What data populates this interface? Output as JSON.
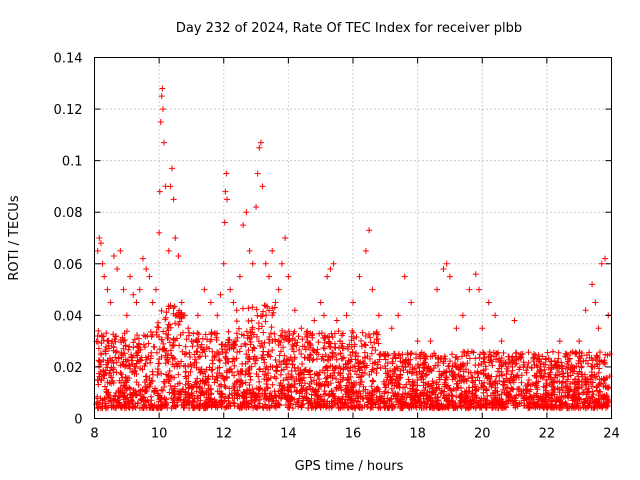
{
  "chart_data": {
    "type": "scatter",
    "title": "Day 232 of 2024, Rate Of TEC Index for receiver plbb",
    "xlabel": "GPS time / hours",
    "ylabel": "ROTI / TECUs",
    "xlim": [
      8,
      24
    ],
    "ylim": [
      0,
      0.14
    ],
    "xticks": [
      8,
      10,
      12,
      14,
      16,
      18,
      20,
      22,
      24
    ],
    "xtick_labels": [
      "8",
      "10",
      "12",
      "14",
      "16",
      "18",
      "20",
      "22",
      "24"
    ],
    "yticks": [
      0,
      0.02,
      0.04,
      0.06,
      0.08,
      0.1,
      0.12,
      0.14
    ],
    "ytick_labels": [
      "0",
      "0.02",
      "0.04",
      "0.06",
      "0.08",
      "0.1",
      "0.12",
      "0.14"
    ],
    "grid": true,
    "marker": "+",
    "color": "#ff0000",
    "series": [
      {
        "name": "ROTI",
        "points": [
          [
            8.1,
            0.065
          ],
          [
            8.15,
            0.07
          ],
          [
            8.2,
            0.068
          ],
          [
            8.25,
            0.06
          ],
          [
            8.3,
            0.055
          ],
          [
            8.4,
            0.05
          ],
          [
            8.5,
            0.045
          ],
          [
            8.6,
            0.063
          ],
          [
            8.7,
            0.058
          ],
          [
            8.8,
            0.065
          ],
          [
            8.9,
            0.05
          ],
          [
            9.0,
            0.04
          ],
          [
            9.1,
            0.055
          ],
          [
            9.2,
            0.048
          ],
          [
            9.3,
            0.045
          ],
          [
            9.4,
            0.05
          ],
          [
            9.5,
            0.062
          ],
          [
            9.6,
            0.058
          ],
          [
            9.7,
            0.055
          ],
          [
            9.8,
            0.045
          ],
          [
            9.9,
            0.05
          ],
          [
            10.0,
            0.072
          ],
          [
            10.02,
            0.088
          ],
          [
            10.05,
            0.115
          ],
          [
            10.08,
            0.125
          ],
          [
            10.1,
            0.128
          ],
          [
            10.12,
            0.12
          ],
          [
            10.15,
            0.107
          ],
          [
            10.2,
            0.09
          ],
          [
            10.3,
            0.065
          ],
          [
            10.35,
            0.09
          ],
          [
            10.4,
            0.097
          ],
          [
            10.45,
            0.085
          ],
          [
            10.5,
            0.07
          ],
          [
            10.6,
            0.063
          ],
          [
            10.7,
            0.045
          ],
          [
            10.8,
            0.04
          ],
          [
            10.9,
            0.035
          ],
          [
            11.0,
            0.03
          ],
          [
            11.2,
            0.04
          ],
          [
            11.4,
            0.05
          ],
          [
            11.6,
            0.045
          ],
          [
            11.8,
            0.04
          ],
          [
            11.9,
            0.048
          ],
          [
            12.0,
            0.06
          ],
          [
            12.03,
            0.076
          ],
          [
            12.05,
            0.088
          ],
          [
            12.08,
            0.095
          ],
          [
            12.1,
            0.085
          ],
          [
            12.2,
            0.05
          ],
          [
            12.3,
            0.045
          ],
          [
            12.4,
            0.042
          ],
          [
            12.5,
            0.055
          ],
          [
            12.6,
            0.075
          ],
          [
            12.7,
            0.08
          ],
          [
            12.8,
            0.065
          ],
          [
            12.9,
            0.06
          ],
          [
            13.0,
            0.082
          ],
          [
            13.05,
            0.095
          ],
          [
            13.1,
            0.105
          ],
          [
            13.15,
            0.107
          ],
          [
            13.2,
            0.09
          ],
          [
            13.3,
            0.06
          ],
          [
            13.4,
            0.055
          ],
          [
            13.5,
            0.065
          ],
          [
            13.6,
            0.045
          ],
          [
            13.7,
            0.05
          ],
          [
            13.8,
            0.06
          ],
          [
            13.9,
            0.07
          ],
          [
            14.0,
            0.055
          ],
          [
            14.2,
            0.042
          ],
          [
            14.4,
            0.035
          ],
          [
            14.6,
            0.03
          ],
          [
            14.8,
            0.038
          ],
          [
            15.0,
            0.045
          ],
          [
            15.1,
            0.04
          ],
          [
            15.2,
            0.055
          ],
          [
            15.3,
            0.058
          ],
          [
            15.4,
            0.06
          ],
          [
            15.5,
            0.038
          ],
          [
            15.6,
            0.03
          ],
          [
            15.8,
            0.04
          ],
          [
            16.0,
            0.045
          ],
          [
            16.2,
            0.055
          ],
          [
            16.4,
            0.065
          ],
          [
            16.5,
            0.073
          ],
          [
            16.6,
            0.05
          ],
          [
            16.8,
            0.04
          ],
          [
            17.0,
            0.025
          ],
          [
            17.2,
            0.035
          ],
          [
            17.4,
            0.04
          ],
          [
            17.6,
            0.055
          ],
          [
            17.8,
            0.045
          ],
          [
            18.0,
            0.03
          ],
          [
            18.2,
            0.025
          ],
          [
            18.4,
            0.03
          ],
          [
            18.6,
            0.05
          ],
          [
            18.8,
            0.058
          ],
          [
            18.9,
            0.06
          ],
          [
            19.0,
            0.055
          ],
          [
            19.2,
            0.035
          ],
          [
            19.4,
            0.04
          ],
          [
            19.6,
            0.05
          ],
          [
            19.8,
            0.056
          ],
          [
            19.9,
            0.05
          ],
          [
            20.0,
            0.035
          ],
          [
            20.2,
            0.045
          ],
          [
            20.4,
            0.04
          ],
          [
            20.6,
            0.03
          ],
          [
            20.8,
            0.02
          ],
          [
            21.0,
            0.038
          ],
          [
            21.2,
            0.025
          ],
          [
            21.4,
            0.02
          ],
          [
            21.6,
            0.025
          ],
          [
            21.8,
            0.02
          ],
          [
            22.0,
            0.015
          ],
          [
            22.2,
            0.02
          ],
          [
            22.4,
            0.03
          ],
          [
            22.6,
            0.025
          ],
          [
            22.8,
            0.02
          ],
          [
            23.0,
            0.03
          ],
          [
            23.2,
            0.042
          ],
          [
            23.4,
            0.052
          ],
          [
            23.5,
            0.045
          ],
          [
            23.6,
            0.035
          ],
          [
            23.7,
            0.06
          ],
          [
            23.8,
            0.062
          ],
          [
            23.9,
            0.04
          ],
          [
            23.95,
            0.025
          ]
        ]
      }
    ]
  }
}
